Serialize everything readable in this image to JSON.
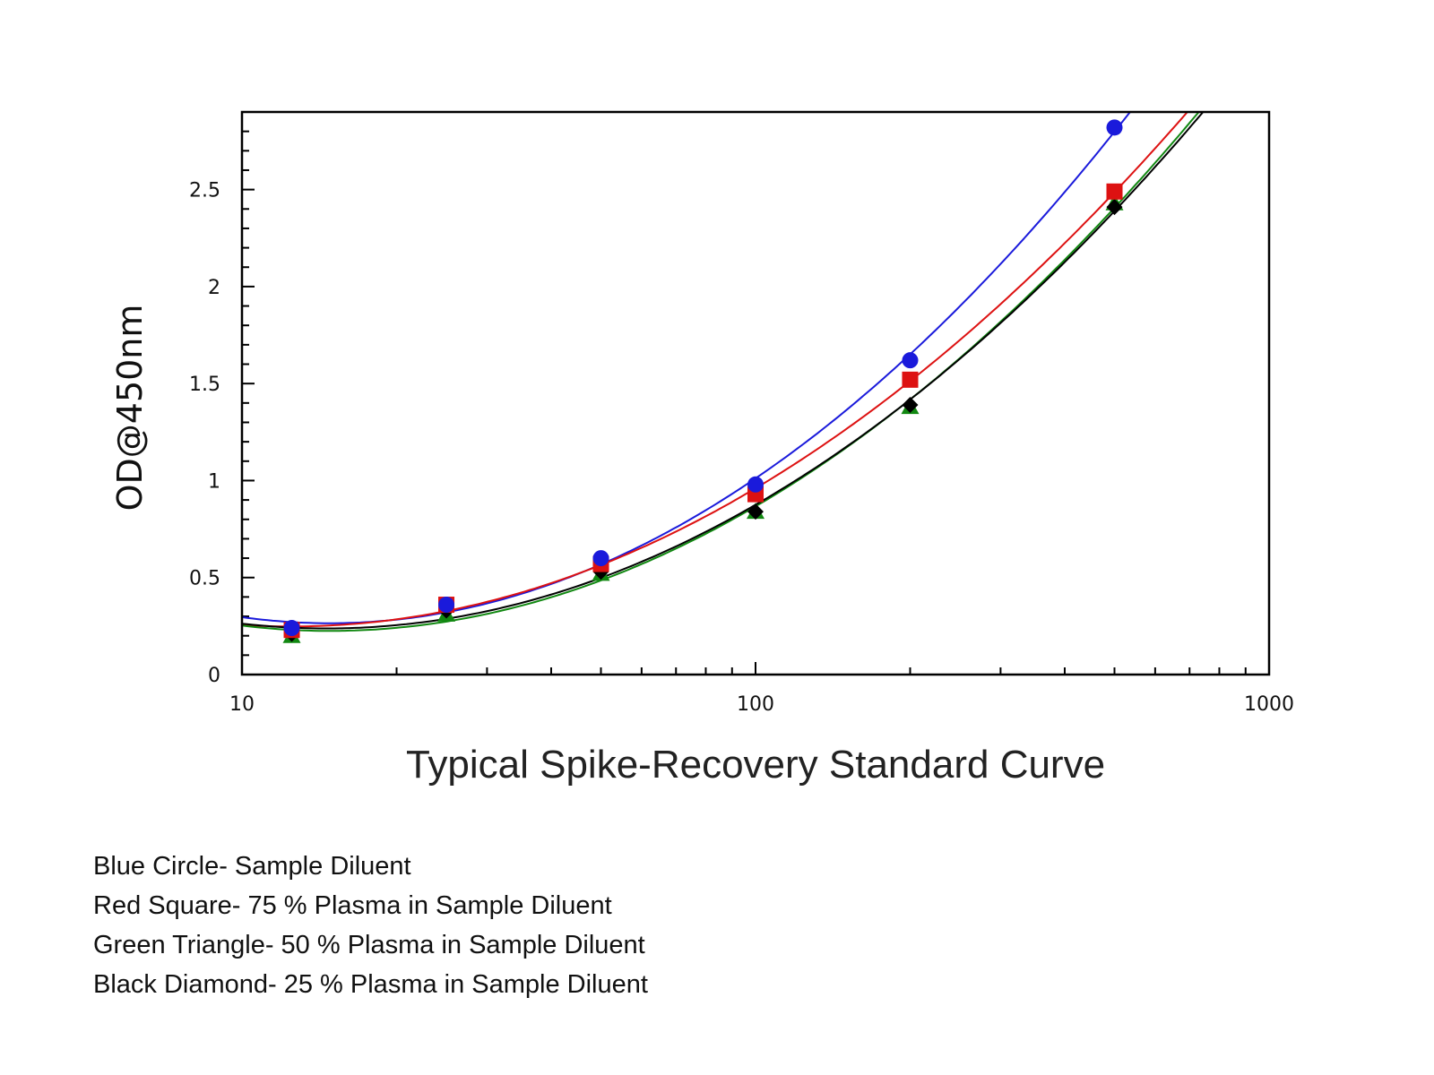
{
  "chart_data": {
    "type": "line",
    "title": "Typical Spike-Recovery Standard Curve",
    "xlabel": "",
    "ylabel": "OD@450nm",
    "x_scale": "log",
    "xlim": [
      10,
      1000
    ],
    "ylim": [
      0,
      2.9
    ],
    "x_ticks": [
      10,
      100,
      1000
    ],
    "x_tick_labels": [
      "10",
      "100",
      "1000"
    ],
    "y_ticks": [
      0,
      0.5,
      1,
      1.5,
      2,
      2.5
    ],
    "y_tick_labels": [
      "0",
      "0.5",
      "1",
      "1.5",
      "2",
      "2.5"
    ],
    "grid": false,
    "x": [
      12.5,
      25,
      50,
      100,
      200,
      500
    ],
    "series": [
      {
        "marker": "circle",
        "color": "#1a1adb",
        "values": [
          0.24,
          0.36,
          0.6,
          0.98,
          1.62,
          2.82
        ]
      },
      {
        "marker": "square",
        "color": "#dd1111",
        "values": [
          0.23,
          0.36,
          0.57,
          0.93,
          1.52,
          2.49
        ]
      },
      {
        "marker": "triangle",
        "color": "#118811",
        "values": [
          0.2,
          0.31,
          0.52,
          0.84,
          1.38,
          2.43
        ]
      },
      {
        "marker": "diamond",
        "color": "#000000",
        "values": [
          0.21,
          0.33,
          0.53,
          0.84,
          1.39,
          2.41
        ]
      }
    ]
  },
  "legend": {
    "lines": [
      "Blue Circle- Sample Diluent",
      "Red Square- 75 % Plasma in Sample Diluent",
      "Green Triangle- 50 % Plasma in Sample Diluent",
      "Black Diamond- 25 % Plasma in  Sample Diluent"
    ]
  }
}
